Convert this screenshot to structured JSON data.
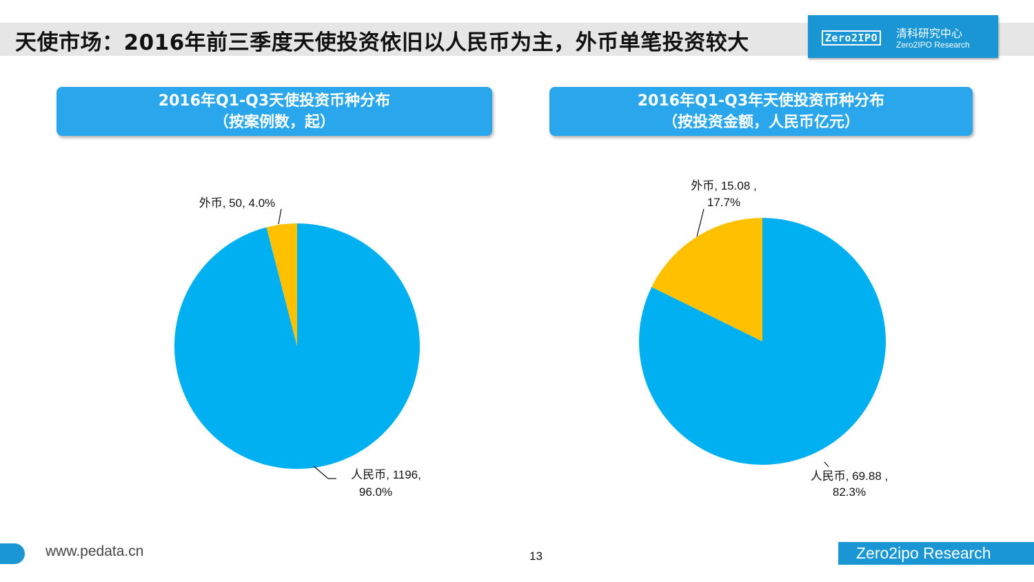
{
  "page": {
    "title": "天使市场：2016年前三季度天使投资依旧以人民币为主，外币单笔投资较大"
  },
  "logo": {
    "mark": "Zero2IPO",
    "name_cn": "清科研究中心",
    "name_en": "Zero2IPO Research"
  },
  "chart_data": [
    {
      "type": "pie",
      "title": "2016年Q1-Q3天使投资币种分布",
      "subtitle": "（按案例数，起）",
      "slices": [
        {
          "name": "人民币",
          "value": 1196,
          "percent": 96.0,
          "label_line1": "人民币, 1196,",
          "label_line2": "96.0%",
          "color": "#00b0f0"
        },
        {
          "name": "外币",
          "value": 50,
          "percent": 4.0,
          "label_line1": "外币, 50, 4.0%",
          "label_line2": "",
          "color": "#ffc000"
        }
      ]
    },
    {
      "type": "pie",
      "title": "2016年Q1-Q3年天使投资币种分布",
      "subtitle": "（按投资金额，人民币亿元）",
      "slices": [
        {
          "name": "人民币",
          "value": 69.88,
          "percent": 82.3,
          "label_line1": "人民币, 69.88 ,",
          "label_line2": "82.3%",
          "color": "#00b0f0"
        },
        {
          "name": "外币",
          "value": 15.08,
          "percent": 17.7,
          "label_line1": "外币, 15.08 ,",
          "label_line2": "17.7%",
          "color": "#ffc000"
        }
      ]
    }
  ],
  "footer": {
    "url": "www.pedata.cn",
    "page_number": "13",
    "brand": "Zero2ipo Research"
  }
}
